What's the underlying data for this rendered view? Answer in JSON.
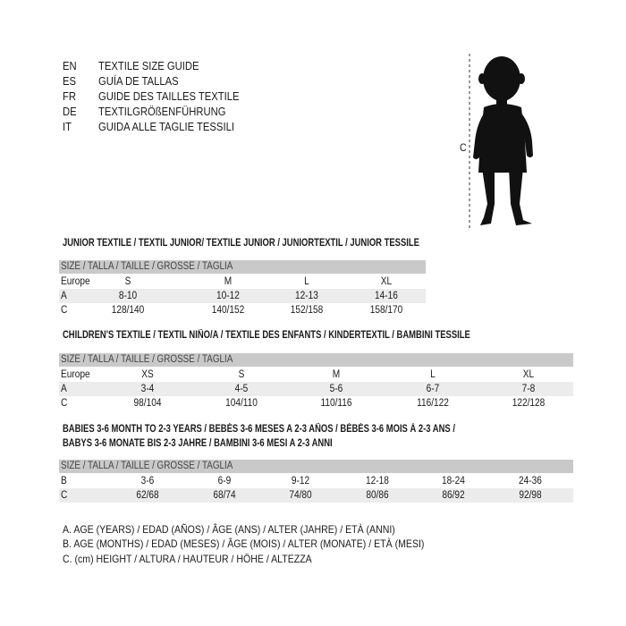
{
  "languages": [
    {
      "code": "EN",
      "text": "TEXTILE SIZE GUIDE"
    },
    {
      "code": "ES",
      "text": "GUÍA DE TALLAS"
    },
    {
      "code": "FR",
      "text": "GUIDE DES TAILLES TEXTILE"
    },
    {
      "code": "DE",
      "text": "TEXTILGRÖßENFÜHRUNG"
    },
    {
      "code": "IT",
      "text": "GUIDA ALLE TAGLIE TESSILI"
    }
  ],
  "figure": {
    "measure_label": "C",
    "icon": "child-silhouette-icon"
  },
  "junior": {
    "title": "JUNIOR TEXTILE / TEXTIL JUNIOR/ TEXTILE JUNIOR / JUNIORTEXTIL / JUNIOR TESSILE",
    "header": "SIZE / TALLA / TAILLE / GRÖSSE / TAGLIA",
    "rows": [
      {
        "label": "Europe",
        "values": [
          "S",
          "M",
          "L",
          "XL"
        ]
      },
      {
        "label": "A",
        "values": [
          "8-10",
          "10-12",
          "12-13",
          "14-16"
        ]
      },
      {
        "label": "C",
        "values": [
          "128/140",
          "140/152",
          "152/158",
          "158/170"
        ]
      }
    ]
  },
  "children": {
    "title": "CHILDREN'S TEXTILE / TEXTIL NIÑO/A / TEXTILE DES ENFANTS / KINDERTEXTIL / BAMBINI TESSILE",
    "header": "SIZE / TALLA / TAILLE / GRÖSSE / TAGLIA",
    "rows": [
      {
        "label": "Europe",
        "values": [
          "XS",
          "S",
          "M",
          "L",
          "XL"
        ]
      },
      {
        "label": "A",
        "values": [
          "3-4",
          "4-5",
          "5-6",
          "6-7",
          "7-8"
        ]
      },
      {
        "label": "C",
        "values": [
          "98/104",
          "104/110",
          "110/116",
          "116/122",
          "122/128"
        ]
      }
    ]
  },
  "babies": {
    "title_line1": "BABIES 3-6 MONTH TO 2-3 YEARS / BEBÉS 3-6 MESES A 2-3 AÑOS / BÉBÉS 3-6 MOIS À 2-3 ANS /",
    "title_line2": "BABYS 3-6 MONATE BIS 2-3 JAHRE / BAMBINI 3-6 MESI A 2-3 ANNI",
    "header": "SIZE / TALLA / TAILLE / GRÖSSE / TAGLIA",
    "rows": [
      {
        "label": "B",
        "values": [
          "3-6",
          "6-9",
          "9-12",
          "12-18",
          "18-24",
          "24-36"
        ]
      },
      {
        "label": "C",
        "values": [
          "62/68",
          "68/74",
          "74/80",
          "80/86",
          "86/92",
          "92/98"
        ]
      }
    ]
  },
  "legend": [
    "A. AGE (YEARS) / EDAD (AÑOS) / ÂGE (ANS) / ALTER (JAHRE) / ETÀ (ANNI)",
    "B. AGE (MONTHS) / EDAD (MESES) / ÂGE (MOIS) / ALTER (MONATE) / ETÀ (MESI)",
    "C. (cm) HEIGHT / ALTURA / HAUTEUR / HÖHE / ALTEZZA"
  ]
}
